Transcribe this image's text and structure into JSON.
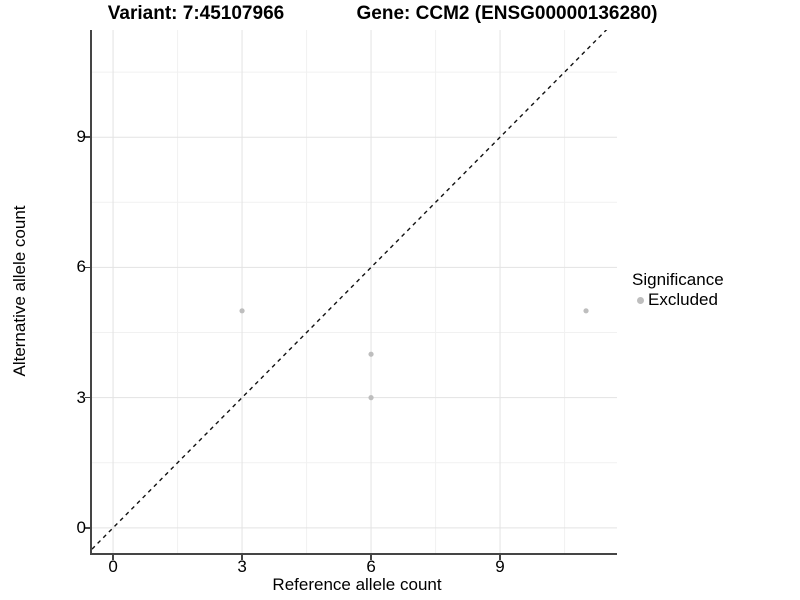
{
  "titles": {
    "left": "Variant: 7:45107966",
    "right": "Gene: CCM2 (ENSG00000136280)"
  },
  "axes": {
    "x_title": "Reference allele count",
    "y_title": "Alternative allele count"
  },
  "legend": {
    "title": "Significance",
    "items": [
      {
        "label": "Excluded",
        "color": "#bebebe"
      }
    ]
  },
  "chart_data": {
    "type": "scatter",
    "title": "Variant: 7:45107966 — Gene: CCM2 (ENSG00000136280)",
    "xlabel": "Reference allele count",
    "ylabel": "Alternative allele count",
    "xlim": [
      -0.49,
      11.72
    ],
    "ylim": [
      -0.58,
      11.47
    ],
    "x_major_ticks": [
      0,
      3,
      6,
      9
    ],
    "y_major_ticks": [
      0,
      3,
      6,
      9
    ],
    "x_minor_gridlines": [
      1.5,
      4.5,
      7.5,
      10.5
    ],
    "y_minor_gridlines": [
      1.5,
      4.5,
      7.5,
      10.5
    ],
    "grid": "major+minor",
    "legend_position": "right-center",
    "series": [
      {
        "name": "Excluded",
        "color": "#bebebe",
        "points": [
          [
            3,
            5
          ],
          [
            6,
            4
          ],
          [
            6,
            3
          ],
          [
            11,
            5
          ]
        ]
      }
    ],
    "reference_line": {
      "slope": 1,
      "intercept": 0,
      "style": "dashed",
      "color": "#111111"
    },
    "colors": {
      "background": "#ffffff",
      "major_grid": "#e3e3e3",
      "minor_grid": "#f1f1f1",
      "axis_line": "#454545",
      "point": "#bebebe"
    }
  }
}
